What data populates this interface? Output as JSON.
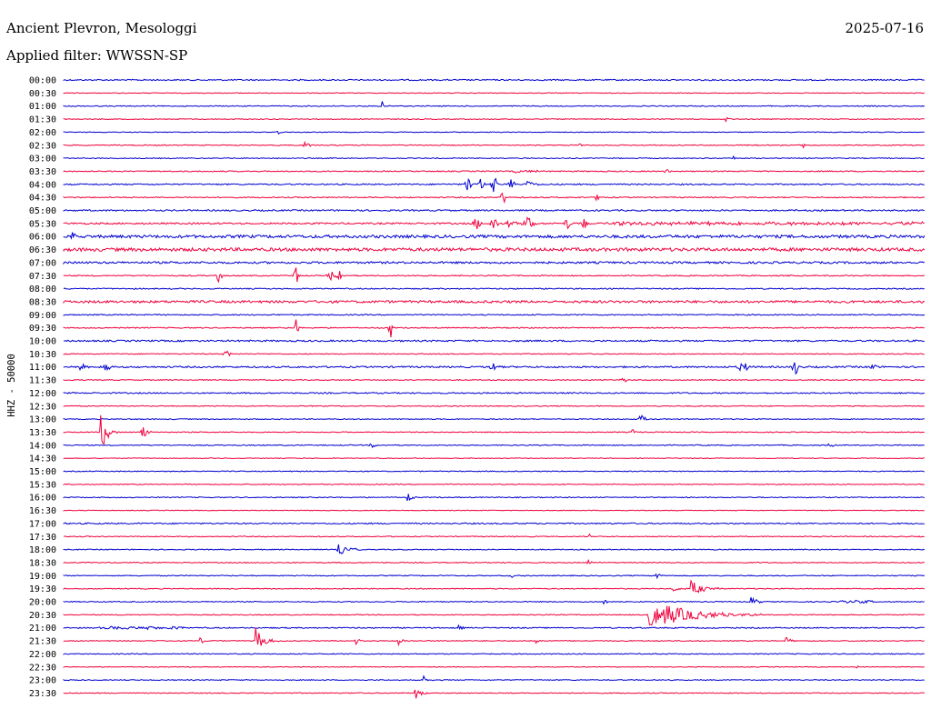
{
  "header": {
    "station": "Ancient Plevron, Mesologgi",
    "date": "2025-07-16",
    "filter": "Applied filter: WWSSN-SP"
  },
  "colors": {
    "blue": "#0000d0",
    "red": "#f0003c"
  },
  "chart_data": {
    "type": "line",
    "subtype": "helicorder",
    "title": "Ancient Plevron, Mesologgi",
    "subtitle": "Applied filter: WWSSN-SP",
    "ylabel": "HHZ - 50000",
    "xlabel": "",
    "grid": false,
    "legend": "none",
    "series": [
      {
        "label": "00:00",
        "color": "#0000d0",
        "noise": 0.7,
        "events": []
      },
      {
        "label": "00:30",
        "color": "#f0003c",
        "noise": 0.4,
        "events": []
      },
      {
        "label": "01:00",
        "color": "#0000d0",
        "noise": 0.5,
        "events": [
          {
            "at": 0.37,
            "amp": 5,
            "dur": 0.015,
            "type": "q"
          }
        ]
      },
      {
        "label": "01:30",
        "color": "#f0003c",
        "noise": 0.5,
        "events": [
          {
            "at": 0.77,
            "amp": 2,
            "dur": 0.01,
            "type": "q"
          }
        ]
      },
      {
        "label": "02:00",
        "color": "#0000d0",
        "noise": 0.4,
        "events": [
          {
            "at": 0.25,
            "amp": 2,
            "dur": 0.005,
            "type": "s"
          }
        ]
      },
      {
        "label": "02:30",
        "color": "#f0003c",
        "noise": 0.5,
        "events": [
          {
            "at": 0.28,
            "amp": 4,
            "dur": 0.02,
            "type": "q"
          },
          {
            "at": 0.6,
            "amp": 2,
            "dur": 0.01,
            "type": "q"
          },
          {
            "at": 0.86,
            "amp": 2,
            "dur": 0.01,
            "type": "q"
          }
        ]
      },
      {
        "label": "03:00",
        "color": "#0000d0",
        "noise": 0.5,
        "events": [
          {
            "at": 0.78,
            "amp": 2,
            "dur": 0.008,
            "type": "q"
          }
        ]
      },
      {
        "label": "03:30",
        "color": "#f0003c",
        "noise": 0.6,
        "events": [
          {
            "at": 0.52,
            "amp": 2,
            "dur": 0.04,
            "type": "n"
          },
          {
            "at": 0.7,
            "amp": 2,
            "dur": 0.02,
            "type": "q"
          }
        ]
      },
      {
        "label": "04:00",
        "color": "#0000d0",
        "noise": 0.7,
        "events": [
          {
            "at": 0.47,
            "amp": 10,
            "dur": 0.005,
            "type": "s"
          },
          {
            "at": 0.485,
            "amp": 8,
            "dur": 0.005,
            "type": "s"
          },
          {
            "at": 0.5,
            "amp": 10,
            "dur": 0.005,
            "type": "s"
          },
          {
            "at": 0.52,
            "amp": 9,
            "dur": 0.005,
            "type": "s"
          },
          {
            "at": 0.54,
            "amp": 6,
            "dur": 0.015,
            "type": "q"
          }
        ]
      },
      {
        "label": "04:30",
        "color": "#f0003c",
        "noise": 0.6,
        "events": [
          {
            "at": 0.51,
            "amp": 14,
            "dur": 0.003,
            "type": "s"
          },
          {
            "at": 0.62,
            "amp": 9,
            "dur": 0.003,
            "type": "s"
          }
        ]
      },
      {
        "label": "05:00",
        "color": "#0000d0",
        "noise": 0.8,
        "events": []
      },
      {
        "label": "05:30",
        "color": "#f0003c",
        "noise": 0.9,
        "events": [
          {
            "at": 0.48,
            "amp": 8,
            "dur": 0.006,
            "type": "s"
          },
          {
            "at": 0.5,
            "amp": 9,
            "dur": 0.006,
            "type": "s"
          },
          {
            "at": 0.52,
            "amp": 8,
            "dur": 0.008,
            "type": "s"
          },
          {
            "at": 0.54,
            "amp": 7,
            "dur": 0.01,
            "type": "s"
          },
          {
            "at": 0.585,
            "amp": 8,
            "dur": 0.005,
            "type": "s"
          },
          {
            "at": 0.605,
            "amp": 8,
            "dur": 0.005,
            "type": "s"
          },
          {
            "at": 0.63,
            "amp": 2.5,
            "dur": 0.37,
            "type": "n"
          }
        ]
      },
      {
        "label": "06:00",
        "color": "#0000d0",
        "noise": 1.6,
        "events": [
          {
            "at": 0.01,
            "amp": 6,
            "dur": 0.01,
            "type": "q"
          }
        ]
      },
      {
        "label": "06:30",
        "color": "#f0003c",
        "noise": 1.8,
        "events": []
      },
      {
        "label": "07:00",
        "color": "#0000d0",
        "noise": 1.1,
        "events": []
      },
      {
        "label": "07:30",
        "color": "#f0003c",
        "noise": 0.6,
        "events": [
          {
            "at": 0.18,
            "amp": 8,
            "dur": 0.005,
            "type": "s"
          },
          {
            "at": 0.27,
            "amp": 10,
            "dur": 0.005,
            "type": "s"
          },
          {
            "at": 0.31,
            "amp": 6,
            "dur": 0.005,
            "type": "s"
          },
          {
            "at": 0.32,
            "amp": 9,
            "dur": 0.005,
            "type": "s"
          }
        ]
      },
      {
        "label": "08:00",
        "color": "#0000d0",
        "noise": 0.6,
        "events": []
      },
      {
        "label": "08:30",
        "color": "#f0003c",
        "noise": 1.3,
        "events": []
      },
      {
        "label": "09:00",
        "color": "#0000d0",
        "noise": 0.6,
        "events": []
      },
      {
        "label": "09:30",
        "color": "#f0003c",
        "noise": 0.6,
        "events": [
          {
            "at": 0.27,
            "amp": 12,
            "dur": 0.004,
            "type": "s"
          },
          {
            "at": 0.38,
            "amp": 12,
            "dur": 0.004,
            "type": "s"
          }
        ]
      },
      {
        "label": "10:00",
        "color": "#0000d0",
        "noise": 0.9,
        "events": []
      },
      {
        "label": "10:30",
        "color": "#f0003c",
        "noise": 0.5,
        "events": [
          {
            "at": 0.19,
            "amp": 4,
            "dur": 0.006,
            "type": "s"
          }
        ]
      },
      {
        "label": "11:00",
        "color": "#0000d0",
        "noise": 0.9,
        "events": [
          {
            "at": 0.02,
            "amp": 6,
            "dur": 0.012,
            "type": "q"
          },
          {
            "at": 0.05,
            "amp": 9,
            "dur": 0.005,
            "type": "s"
          },
          {
            "at": 0.5,
            "amp": 6,
            "dur": 0.01,
            "type": "s"
          },
          {
            "at": 0.79,
            "amp": 6,
            "dur": 0.01,
            "type": "s"
          },
          {
            "at": 0.85,
            "amp": 8,
            "dur": 0.006,
            "type": "s"
          },
          {
            "at": 0.94,
            "amp": 6,
            "dur": 0.005,
            "type": "s"
          }
        ]
      },
      {
        "label": "11:30",
        "color": "#f0003c",
        "noise": 0.5,
        "events": [
          {
            "at": 0.65,
            "amp": 3,
            "dur": 0.005,
            "type": "s"
          }
        ]
      },
      {
        "label": "12:00",
        "color": "#0000d0",
        "noise": 0.7,
        "events": []
      },
      {
        "label": "12:30",
        "color": "#f0003c",
        "noise": 0.5,
        "events": []
      },
      {
        "label": "13:00",
        "color": "#0000d0",
        "noise": 0.5,
        "events": [
          {
            "at": 0.67,
            "amp": 6,
            "dur": 0.012,
            "type": "q"
          }
        ]
      },
      {
        "label": "13:30",
        "color": "#f0003c",
        "noise": 0.5,
        "events": [
          {
            "at": 0.045,
            "amp": 18,
            "dur": 0.018,
            "type": "q"
          },
          {
            "at": 0.09,
            "amp": 11,
            "dur": 0.015,
            "type": "q"
          },
          {
            "at": 0.66,
            "amp": 4,
            "dur": 0.012,
            "type": "q"
          }
        ]
      },
      {
        "label": "14:00",
        "color": "#0000d0",
        "noise": 0.5,
        "events": [
          {
            "at": 0.36,
            "amp": 3,
            "dur": 0.006,
            "type": "s"
          },
          {
            "at": 0.89,
            "amp": 2,
            "dur": 0.006,
            "type": "s"
          }
        ]
      },
      {
        "label": "14:30",
        "color": "#f0003c",
        "noise": 0.4,
        "events": []
      },
      {
        "label": "15:00",
        "color": "#0000d0",
        "noise": 0.5,
        "events": []
      },
      {
        "label": "15:30",
        "color": "#f0003c",
        "noise": 0.5,
        "events": []
      },
      {
        "label": "16:00",
        "color": "#0000d0",
        "noise": 0.5,
        "events": [
          {
            "at": 0.4,
            "amp": 6,
            "dur": 0.012,
            "type": "q"
          }
        ]
      },
      {
        "label": "16:30",
        "color": "#f0003c",
        "noise": 0.4,
        "events": []
      },
      {
        "label": "17:00",
        "color": "#0000d0",
        "noise": 0.7,
        "events": []
      },
      {
        "label": "17:30",
        "color": "#f0003c",
        "noise": 0.5,
        "events": [
          {
            "at": 0.61,
            "amp": 3,
            "dur": 0.004,
            "type": "s"
          }
        ]
      },
      {
        "label": "18:00",
        "color": "#0000d0",
        "noise": 0.5,
        "events": [
          {
            "at": 0.32,
            "amp": 8,
            "dur": 0.03,
            "type": "q"
          }
        ]
      },
      {
        "label": "18:30",
        "color": "#f0003c",
        "noise": 0.5,
        "events": [
          {
            "at": 0.61,
            "amp": 3,
            "dur": 0.01,
            "type": "q"
          }
        ]
      },
      {
        "label": "19:00",
        "color": "#0000d0",
        "noise": 0.5,
        "events": [
          {
            "at": 0.52,
            "amp": 3,
            "dur": 0.004,
            "type": "s"
          },
          {
            "at": 0.69,
            "amp": 4,
            "dur": 0.01,
            "type": "q"
          }
        ]
      },
      {
        "label": "19:30",
        "color": "#f0003c",
        "noise": 0.5,
        "events": [
          {
            "at": 0.71,
            "amp": 3,
            "dur": 0.015,
            "type": "q"
          },
          {
            "at": 0.73,
            "amp": 8,
            "dur": 0.04,
            "type": "q"
          }
        ]
      },
      {
        "label": "20:00",
        "color": "#0000d0",
        "noise": 0.5,
        "events": [
          {
            "at": 0.63,
            "amp": 8,
            "dur": 0.004,
            "type": "s"
          },
          {
            "at": 0.8,
            "amp": 4,
            "dur": 0.02,
            "type": "q"
          },
          {
            "at": 0.9,
            "amp": 2,
            "dur": 0.04,
            "type": "n"
          }
        ]
      },
      {
        "label": "20:30",
        "color": "#f0003c",
        "noise": 0.5,
        "events": [
          {
            "at": 0.68,
            "amp": 16,
            "dur": 0.13,
            "type": "q"
          }
        ]
      },
      {
        "label": "21:00",
        "color": "#0000d0",
        "noise": 0.6,
        "events": [
          {
            "at": 0.04,
            "amp": 2,
            "dur": 0.1,
            "type": "n"
          },
          {
            "at": 0.46,
            "amp": 2,
            "dur": 0.01,
            "type": "q"
          }
        ]
      },
      {
        "label": "21:30",
        "color": "#f0003c",
        "noise": 0.5,
        "events": [
          {
            "at": 0.16,
            "amp": 3,
            "dur": 0.015,
            "type": "q"
          },
          {
            "at": 0.225,
            "amp": 12,
            "dur": 0.025,
            "type": "q"
          },
          {
            "at": 0.34,
            "amp": 4,
            "dur": 0.01,
            "type": "q"
          },
          {
            "at": 0.39,
            "amp": 4,
            "dur": 0.01,
            "type": "q"
          },
          {
            "at": 0.55,
            "amp": 2,
            "dur": 0.01,
            "type": "q"
          },
          {
            "at": 0.84,
            "amp": 4,
            "dur": 0.012,
            "type": "q"
          }
        ]
      },
      {
        "label": "22:00",
        "color": "#0000d0",
        "noise": 0.5,
        "events": []
      },
      {
        "label": "22:30",
        "color": "#f0003c",
        "noise": 0.4,
        "events": [
          {
            "at": 0.92,
            "amp": 3,
            "dur": 0.008,
            "type": "q"
          }
        ]
      },
      {
        "label": "23:00",
        "color": "#0000d0",
        "noise": 0.5,
        "events": [
          {
            "at": 0.42,
            "amp": 3,
            "dur": 0.012,
            "type": "q"
          }
        ]
      },
      {
        "label": "23:30",
        "color": "#f0003c",
        "noise": 0.5,
        "events": [
          {
            "at": 0.41,
            "amp": 6,
            "dur": 0.015,
            "type": "q"
          }
        ]
      }
    ]
  }
}
